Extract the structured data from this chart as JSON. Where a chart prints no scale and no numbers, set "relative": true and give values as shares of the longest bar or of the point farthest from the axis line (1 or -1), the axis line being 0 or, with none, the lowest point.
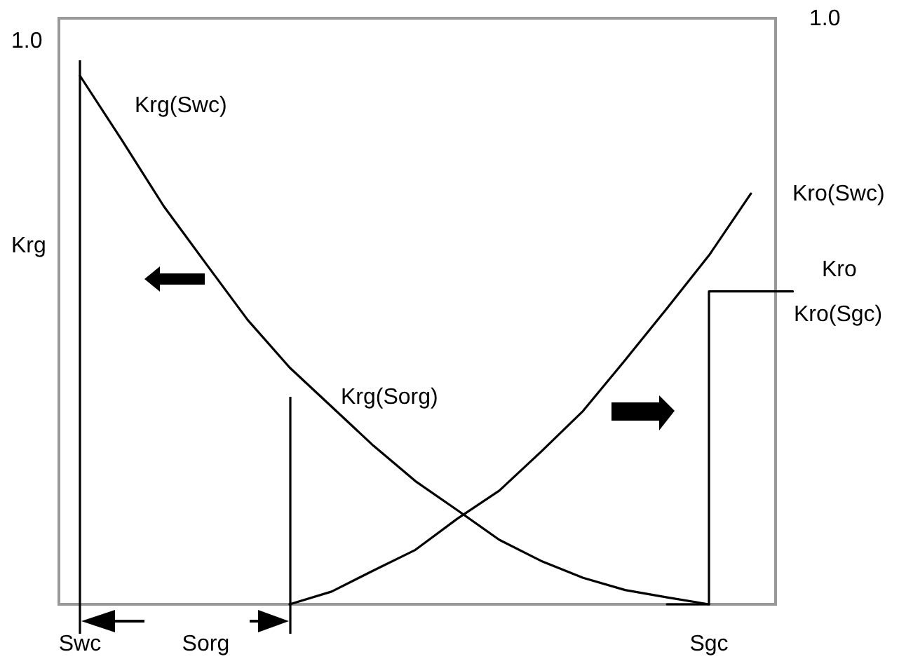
{
  "chart_data": {
    "type": "line",
    "relative": true,
    "ylabel": "Krg",
    "y2label": "Kro",
    "categories": [
      "Swc",
      null,
      null,
      "Sorg",
      null,
      null,
      null,
      null,
      null,
      null,
      null,
      null,
      null,
      null,
      null,
      "Sgc",
      null,
      null
    ],
    "series": [
      {
        "color": "#000000",
        "values": [
          1,
          0.878,
          0.753,
          0.645,
          0.538,
          0.448,
          0.374,
          0.3,
          0.233,
          0.178,
          0.122,
          0.082,
          0.05,
          0.027,
          0.013,
          0,
          null,
          null
        ]
      },
      {
        "color": "#000000",
        "values": [
          null,
          null,
          null,
          null,
          null,
          0,
          0.024,
          0.064,
          0.103,
          0.162,
          0.215,
          0.289,
          0.366,
          0.462,
          0.56,
          0.66,
          0.777,
          null
        ]
      },
      {
        "type": "step",
        "color": "#000000",
        "values": [
          null,
          null,
          null,
          null,
          null,
          null,
          null,
          null,
          null,
          null,
          null,
          null,
          null,
          null,
          0,
          0.592,
          0.592,
          0.592
        ]
      }
    ],
    "ref_lines": [
      {
        "axis": "x",
        "value": "Swc",
        "color": "#000000"
      }
    ],
    "annotations": [
      "1.0",
      "1.0",
      "Krg(Swc)",
      "Krg(Sorg)",
      "Kro(Swc)",
      "Kro(Sgc)"
    ]
  }
}
